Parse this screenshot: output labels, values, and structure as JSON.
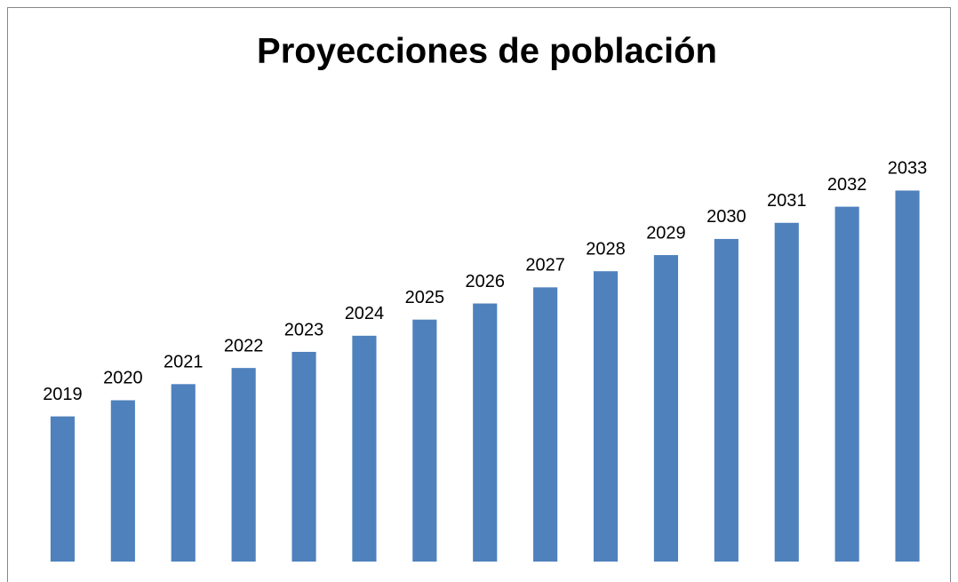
{
  "chart_data": {
    "type": "bar",
    "title": "Proyecciones de población",
    "values": [
      2019,
      2020,
      2021,
      2022,
      2023,
      2024,
      2025,
      2026,
      2027,
      2028,
      2029,
      2030,
      2031,
      2032,
      2033
    ],
    "color": "#4f81bd",
    "ylim": [
      2010,
      2036
    ],
    "data_labels": true
  }
}
